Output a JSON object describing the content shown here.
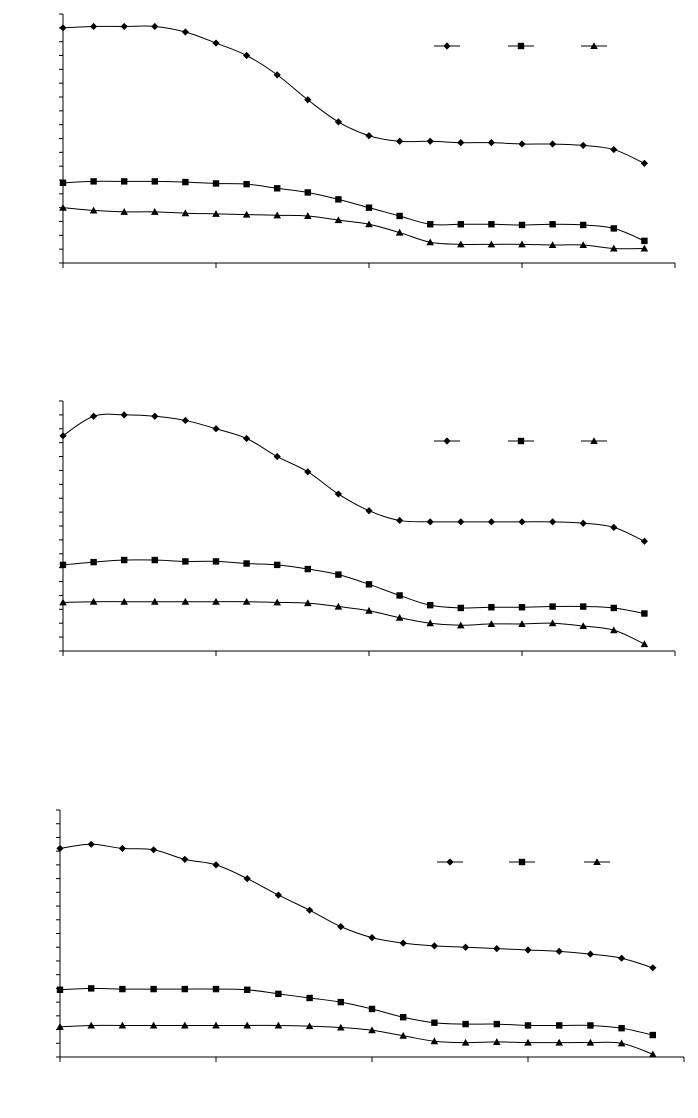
{
  "chart_data": [
    {
      "type": "line",
      "x": [
        0,
        1,
        2,
        3,
        4,
        5,
        6,
        7,
        8,
        9,
        10,
        11,
        12,
        13,
        14,
        15,
        16,
        17,
        18,
        19
      ],
      "xlim": [
        0,
        20
      ],
      "ylim": [
        0,
        18
      ],
      "grid": false,
      "legend_position": "top-right",
      "series": [
        {
          "marker": "diamond",
          "values": [
            17.0,
            17.1,
            17.1,
            17.1,
            16.7,
            15.9,
            15.0,
            13.6,
            11.8,
            10.2,
            9.2,
            8.8,
            8.8,
            8.7,
            8.7,
            8.6,
            8.6,
            8.5,
            8.2,
            7.2
          ]
        },
        {
          "marker": "square",
          "values": [
            5.8,
            5.9,
            5.9,
            5.9,
            5.85,
            5.75,
            5.7,
            5.4,
            5.1,
            4.6,
            4.0,
            3.4,
            2.8,
            2.8,
            2.8,
            2.75,
            2.8,
            2.75,
            2.5,
            1.6
          ]
        },
        {
          "marker": "triangle",
          "values": [
            4.0,
            3.8,
            3.7,
            3.7,
            3.6,
            3.55,
            3.5,
            3.45,
            3.4,
            3.1,
            2.8,
            2.2,
            1.5,
            1.35,
            1.35,
            1.35,
            1.3,
            1.3,
            1.05,
            1.05
          ]
        }
      ]
    },
    {
      "type": "line",
      "x": [
        0,
        1,
        2,
        3,
        4,
        5,
        6,
        7,
        8,
        9,
        10,
        11,
        12,
        13,
        14,
        15,
        16,
        17,
        18,
        19
      ],
      "xlim": [
        0,
        20
      ],
      "ylim": [
        0,
        18
      ],
      "grid": false,
      "legend_position": "top-right",
      "series": [
        {
          "marker": "diamond",
          "values": [
            15.5,
            16.9,
            17.0,
            16.9,
            16.6,
            16.0,
            15.3,
            14.0,
            12.9,
            11.3,
            10.1,
            9.4,
            9.3,
            9.3,
            9.3,
            9.3,
            9.3,
            9.2,
            8.9,
            7.9
          ]
        },
        {
          "marker": "square",
          "values": [
            6.2,
            6.4,
            6.55,
            6.55,
            6.45,
            6.45,
            6.3,
            6.2,
            5.9,
            5.5,
            4.8,
            4.0,
            3.3,
            3.1,
            3.15,
            3.15,
            3.2,
            3.2,
            3.1,
            2.7
          ]
        },
        {
          "marker": "triangle",
          "values": [
            3.5,
            3.55,
            3.55,
            3.55,
            3.55,
            3.55,
            3.55,
            3.5,
            3.45,
            3.2,
            2.9,
            2.4,
            2.0,
            1.85,
            1.95,
            1.95,
            2.0,
            1.8,
            1.5,
            0.5
          ]
        }
      ]
    },
    {
      "type": "line",
      "x": [
        0,
        1,
        2,
        3,
        4,
        5,
        6,
        7,
        8,
        9,
        10,
        11,
        12,
        13,
        14,
        15,
        16,
        17,
        18,
        19
      ],
      "xlim": [
        0,
        20
      ],
      "ylim": [
        0,
        18
      ],
      "grid": false,
      "legend_position": "top-right",
      "series": [
        {
          "marker": "diamond",
          "values": [
            15.2,
            15.5,
            15.2,
            15.1,
            14.4,
            14.0,
            13.0,
            11.8,
            10.7,
            9.5,
            8.7,
            8.3,
            8.1,
            8.0,
            7.9,
            7.8,
            7.7,
            7.5,
            7.2,
            6.5
          ]
        },
        {
          "marker": "square",
          "values": [
            4.9,
            5.0,
            4.95,
            4.95,
            4.95,
            4.95,
            4.9,
            4.6,
            4.3,
            4.0,
            3.5,
            2.9,
            2.5,
            2.4,
            2.4,
            2.3,
            2.3,
            2.3,
            2.1,
            1.6
          ]
        },
        {
          "marker": "triangle",
          "values": [
            2.2,
            2.3,
            2.3,
            2.3,
            2.3,
            2.3,
            2.3,
            2.3,
            2.25,
            2.15,
            1.95,
            1.55,
            1.15,
            1.05,
            1.1,
            1.05,
            1.05,
            1.05,
            1.0,
            0.2
          ]
        }
      ]
    }
  ]
}
